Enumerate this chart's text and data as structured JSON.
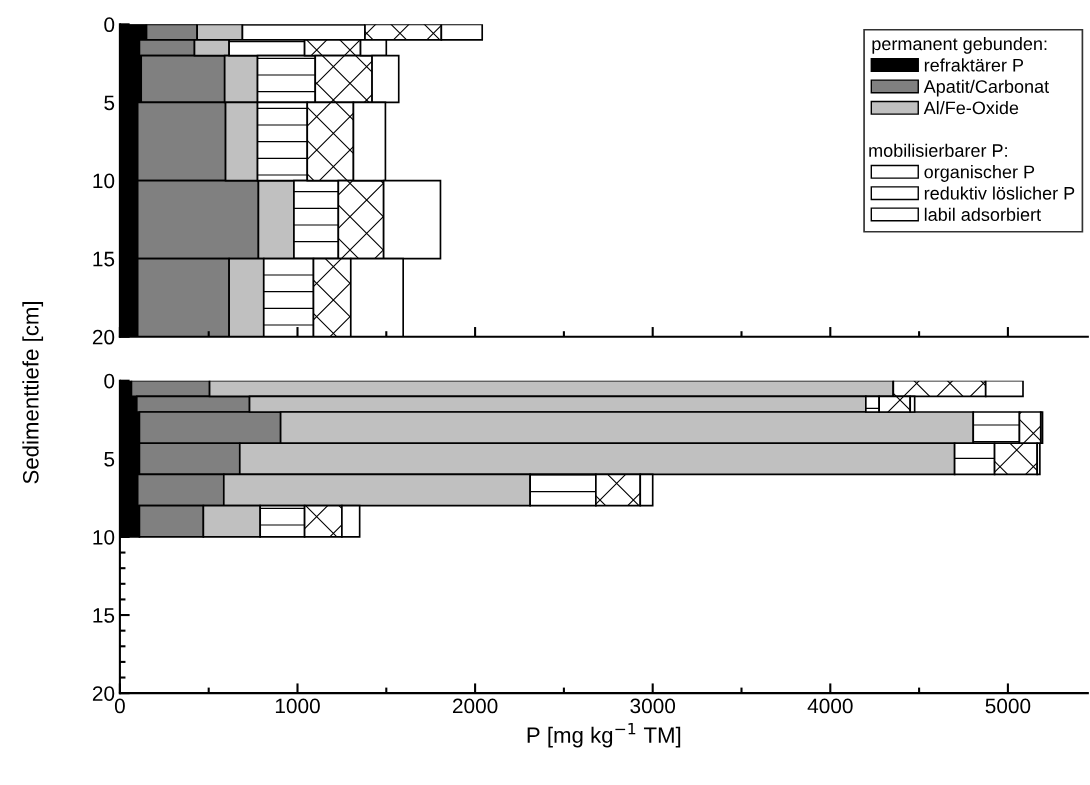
{
  "chart_data": [
    {
      "type": "bar",
      "orientation": "horizontal",
      "stacked": true,
      "ylabel": "Sedimenttiefe [cm]",
      "legend_title": "permanent gebunden:",
      "annotations": [
        "mobilisierbarer P:"
      ],
      "legend": "top right",
      "x": [
        0.5,
        1.5,
        3.5,
        7.5,
        12.5,
        17.5
      ],
      "series": [
        {
          "name": "refraktärer P",
          "color": "#000000",
          "values": [
            150,
            110,
            120,
            100,
            100,
            100
          ]
        },
        {
          "name": "Apatit/Carbonat",
          "color": "#808080",
          "values": [
            285,
            310,
            470,
            495,
            680,
            515
          ]
        },
        {
          "name": "Al/Fe-Oxide",
          "color": "#c0c0c0",
          "values": [
            255,
            195,
            185,
            180,
            200,
            195
          ]
        },
        {
          "name": "organischer P",
          "color": "#ffffff",
          "values": [
            690,
            425,
            325,
            280,
            250,
            280
          ]
        },
        {
          "name": "reduktiv löslicher P",
          "color": "#ffffff",
          "values": [
            430,
            315,
            320,
            260,
            255,
            210
          ]
        },
        {
          "name": "labil adsorbiert",
          "color": "#ffffff",
          "values": [
            230,
            145,
            150,
            180,
            320,
            295
          ]
        }
      ],
      "xlim": [
        0,
        5450
      ],
      "xticks": [
        0,
        1000,
        2000,
        3000,
        4000,
        5000
      ],
      "ylim": [
        20,
        0
      ],
      "yticks": [
        0,
        5,
        10,
        15,
        20
      ],
      "tick_labels": "y"
    },
    {
      "type": "bar",
      "orientation": "horizontal",
      "stacked": true,
      "xlabel": "P [mg kg$^{−1}$ TM]",
      "x": [
        0.5,
        1.5,
        3,
        5,
        7,
        9
      ],
      "series": [
        {
          "color": "#000000",
          "values": [
            65,
            95,
            110,
            110,
            100,
            110
          ]
        },
        {
          "color": "#808080",
          "values": [
            440,
            635,
            795,
            565,
            485,
            360
          ]
        },
        {
          "color": "#c0c0c0",
          "values": [
            3850,
            3470,
            3900,
            4025,
            1725,
            320
          ]
        },
        {
          "color": "#ffffff",
          "values": [
            0,
            75,
            260,
            225,
            370,
            250
          ]
        },
        {
          "color": "#ffffff",
          "values": [
            520,
            175,
            120,
            240,
            250,
            210
          ]
        },
        {
          "color": "#ffffff",
          "values": [
            210,
            25,
            10,
            15,
            70,
            100
          ]
        }
      ],
      "xlim": [
        0,
        5450
      ],
      "xticks": [
        0,
        1000,
        2000,
        3000,
        4000,
        5000
      ],
      "ylim": [
        20,
        0
      ],
      "yticks": [
        0,
        5,
        10,
        15,
        20
      ]
    }
  ]
}
